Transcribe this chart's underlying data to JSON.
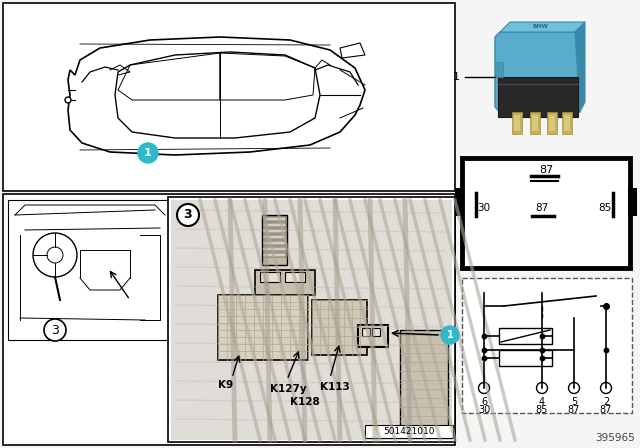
{
  "bg_color": "#f5f5f5",
  "white": "#ffffff",
  "black": "#000000",
  "teal_color": "#30b8c8",
  "gray_light": "#e8e8e8",
  "gray_med": "#cccccc",
  "gray_dark": "#888888",
  "blue_relay": "#5aaccc",
  "blue_relay_dark": "#3a8cac",
  "part_number": "395965",
  "stamp_number": "501421010",
  "circuit_pins_top": [
    "6",
    "4",
    "5",
    "2"
  ],
  "circuit_pins_bottom": [
    "30",
    "85",
    "87",
    "87"
  ],
  "component_labels": [
    "K9",
    "K127y",
    "K113",
    "K128"
  ]
}
